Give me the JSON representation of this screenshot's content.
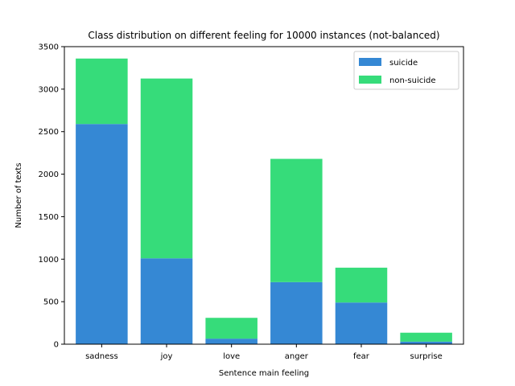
{
  "chart_data": {
    "type": "bar",
    "stacked": true,
    "title": "Class distribution on different feeling for 10000 instances (not-balanced)",
    "xlabel": "Sentence main feeling",
    "ylabel": "Number of texts",
    "categories": [
      "sadness",
      "joy",
      "love",
      "anger",
      "fear",
      "surprise"
    ],
    "series": [
      {
        "name": "suicide",
        "color": "#3588d4",
        "values": [
          2590,
          1010,
          65,
          730,
          490,
          30
        ]
      },
      {
        "name": "non-suicide",
        "color": "#36dc7a",
        "values": [
          770,
          2115,
          245,
          1450,
          410,
          105
        ]
      }
    ],
    "ylim": [
      0,
      3500
    ],
    "yticks": [
      0,
      500,
      1000,
      1500,
      2000,
      2500,
      3000,
      3500
    ],
    "grid": false,
    "legend_position": "top-right"
  }
}
